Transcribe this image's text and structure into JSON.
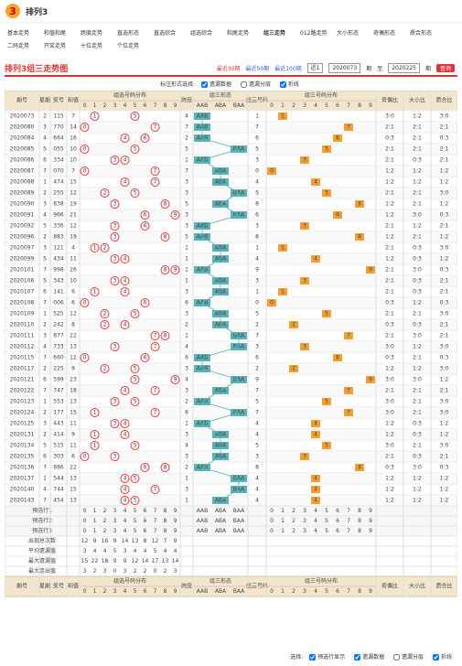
{
  "header": {
    "logo": "3",
    "title": "排列3"
  },
  "nav": [
    "基本走势",
    "和值和尾",
    "跨度走势",
    "直选形态",
    "直选综合",
    "组选综合",
    "和尾走势",
    "组三走势",
    "012路走势",
    "大小形态",
    "奇偶形态",
    "质合形态",
    "二码走势",
    "开奖走势",
    "十位走势",
    "个位走势"
  ],
  "toolbar": {
    "title": "排列3组三走势图",
    "recent": [
      "最近30期",
      "最近50期",
      "最近100期"
    ],
    "select": "近1",
    "from": "2020073",
    "unit": "期",
    "to_label": "至",
    "to": "2020225",
    "button": "查询"
  },
  "options": {
    "label": "标注形式选择:",
    "items": [
      "遗漏数据",
      "遗漏分层",
      "折线"
    ]
  },
  "table": {
    "headers": {
      "period": "期号",
      "week": "星期",
      "number": "奖号",
      "sum": "和值",
      "distribution": "组选号码分布",
      "span": "跨度",
      "form": "组三形态",
      "pair": "组三号码",
      "pair_distribution": "组三号码分布",
      "odd_even": "奇偶比",
      "big_small": "大小比",
      "prime": "质合比"
    },
    "digits": [
      0,
      1,
      2,
      3,
      4,
      5,
      6,
      7,
      8,
      9
    ],
    "forms": [
      "AAB",
      "ABA",
      "BAA"
    ],
    "rows": [
      [
        "2020073",
        2,
        "115",
        7,
        4,
        "AAB",
        1,
        "3:0",
        "1:2",
        "3:0"
      ],
      [
        "2020080",
        3,
        "770",
        14,
        7,
        "AAB",
        7,
        "2:1",
        "2:1",
        "2:1"
      ],
      [
        "2020084",
        4,
        "664",
        16,
        2,
        "AAB",
        6,
        "0:3",
        "2:1",
        "0:3"
      ],
      [
        "2020085",
        5,
        "055",
        10,
        5,
        "BAA",
        5,
        "2:1",
        "2:1",
        "2:1"
      ],
      [
        "2020086",
        6,
        "334",
        10,
        1,
        "AAB",
        3,
        "2:1",
        "0:3",
        "2:1"
      ],
      [
        "2020087",
        7,
        "070",
        7,
        7,
        "ABA",
        0,
        "1:2",
        "1:2",
        "1:2"
      ],
      [
        "2020088",
        1,
        "474",
        15,
        3,
        "ABA",
        4,
        "1:2",
        "1:2",
        "1:2"
      ],
      [
        "2020089",
        2,
        "255",
        12,
        3,
        "BAA",
        5,
        "2:1",
        "2:1",
        "3:0"
      ],
      [
        "2020090",
        3,
        "838",
        19,
        5,
        "ABA",
        8,
        "1:2",
        "2:1",
        "1:2"
      ],
      [
        "2020091",
        4,
        "966",
        21,
        3,
        "BAA",
        6,
        "1:2",
        "3:0",
        "0:3"
      ],
      [
        "2020092",
        5,
        "336",
        12,
        3,
        "AAB",
        3,
        "2:1",
        "1:2",
        "2:1"
      ],
      [
        "2020096",
        2,
        "883",
        19,
        5,
        "AAB",
        8,
        "1:2",
        "2:1",
        "1:2"
      ],
      [
        "2020097",
        3,
        "121",
        4,
        1,
        "ABA",
        1,
        "2:1",
        "0:3",
        "3:0"
      ],
      [
        "2020099",
        5,
        "434",
        11,
        1,
        "ABA",
        4,
        "1:2",
        "0:3",
        "1:2"
      ],
      [
        "2020101",
        7,
        "998",
        26,
        1,
        "AAB",
        9,
        "2:1",
        "3:0",
        "0:3"
      ],
      [
        "2020106",
        5,
        "343",
        10,
        1,
        "ABA",
        3,
        "2:1",
        "0:3",
        "2:1"
      ],
      [
        "2020107",
        6,
        "141",
        6,
        3,
        "ABA",
        1,
        "2:1",
        "0:3",
        "2:1"
      ],
      [
        "2020108",
        7,
        "006",
        6,
        6,
        "AAB",
        0,
        "0:3",
        "1:2",
        "0:3"
      ],
      [
        "2020109",
        1,
        "525",
        12,
        3,
        "ABA",
        5,
        "2:1",
        "2:1",
        "3:0"
      ],
      [
        "2020110",
        2,
        "242",
        8,
        2,
        "ABA",
        2,
        "0:3",
        "0:3",
        "2:1"
      ],
      [
        "2020111",
        3,
        "877",
        22,
        1,
        "BAA",
        7,
        "2:1",
        "3:0",
        "2:1"
      ],
      [
        "2020112",
        4,
        "733",
        13,
        4,
        "BAA",
        3,
        "3:0",
        "1:2",
        "3:0"
      ],
      [
        "2020115",
        7,
        "660",
        12,
        6,
        "AAB",
        6,
        "0:3",
        "2:1",
        "0:3"
      ],
      [
        "2020117",
        2,
        "225",
        9,
        3,
        "AAB",
        2,
        "1:2",
        "1:2",
        "3:0"
      ],
      [
        "2020121",
        6,
        "599",
        23,
        4,
        "BAA",
        9,
        "3:0",
        "3:0",
        "1:2"
      ],
      [
        "2020122",
        7,
        "747",
        18,
        3,
        "ABA",
        7,
        "2:1",
        "2:1",
        "2:1"
      ],
      [
        "2020123",
        1,
        "553",
        13,
        2,
        "AAB",
        5,
        "3:0",
        "2:1",
        "3:0"
      ],
      [
        "2020124",
        2,
        "177",
        15,
        6,
        "BAA",
        7,
        "3:0",
        "2:1",
        "3:0"
      ],
      [
        "2020125",
        3,
        "443",
        11,
        1,
        "AAB",
        4,
        "1:2",
        "0:3",
        "1:2"
      ],
      [
        "2020131",
        2,
        "414",
        9,
        3,
        "ABA",
        4,
        "1:2",
        "0:3",
        "1:2"
      ],
      [
        "2020134",
        5,
        "515",
        11,
        4,
        "ABA",
        5,
        "3:0",
        "2:1",
        "3:0"
      ],
      [
        "2020135",
        6,
        "303",
        6,
        3,
        "ABA",
        3,
        "2:1",
        "0:3",
        "2:1"
      ],
      [
        "2020136",
        7,
        "886",
        22,
        2,
        "AAB",
        8,
        "0:3",
        "3:0",
        "0:3"
      ],
      [
        "2020137",
        1,
        "544",
        13,
        1,
        "BAA",
        4,
        "1:2",
        "1:2",
        "1:2"
      ],
      [
        "2020140",
        4,
        "744",
        15,
        3,
        "BAA",
        4,
        "1:2",
        "1:2",
        "1:2"
      ],
      [
        "2020143",
        7,
        "454",
        13,
        1,
        "ABA",
        4,
        "1:2",
        "1:2",
        "1:2"
      ]
    ],
    "preselect": [
      "预选行1",
      "预选行2",
      "预选行3"
    ],
    "stats": [
      {
        "label": "出现总次数",
        "values": [
          12,
          9,
          16,
          9,
          14,
          13,
          8,
          12,
          7,
          9
        ]
      },
      {
        "label": "平均遗漏值",
        "values": [
          3,
          4,
          4,
          5,
          3,
          4,
          4,
          5,
          4,
          4
        ]
      },
      {
        "label": "最大遗漏值",
        "values": [
          15,
          22,
          18,
          9,
          9,
          12,
          14,
          17,
          13,
          14
        ]
      },
      {
        "label": "最大连出值",
        "values": [
          3,
          2,
          3,
          0,
          3,
          2,
          2,
          0,
          2,
          3
        ]
      }
    ]
  },
  "footer": {
    "label": "选择:",
    "items": [
      "预选行显示",
      "遗漏数据",
      "遗漏分层",
      "折线"
    ]
  }
}
